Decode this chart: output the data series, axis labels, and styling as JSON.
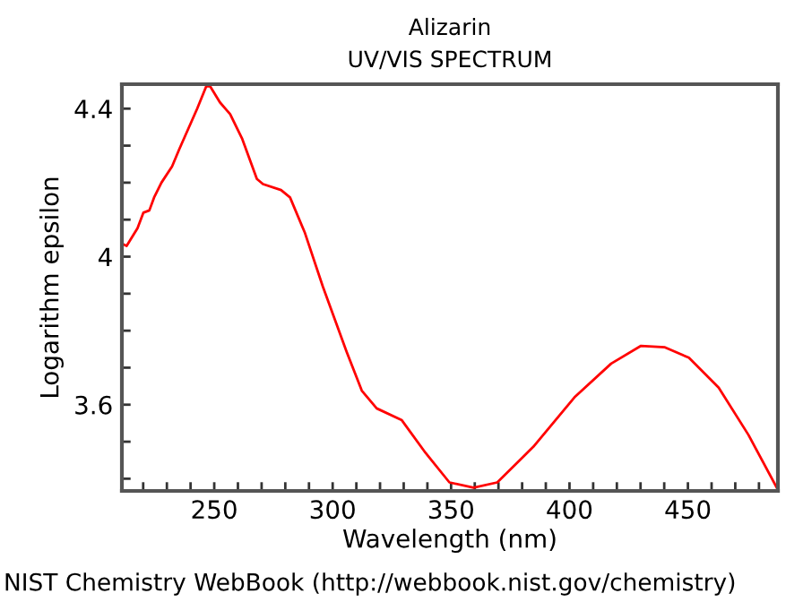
{
  "chart_data": {
    "type": "line",
    "title": "Alizarin",
    "subtitle": "UV/VIS SPECTRUM",
    "xlabel": "Wavelength (nm)",
    "ylabel": "Logarithm epsilon",
    "annotations": [
      "NIST Chemistry WebBook (http://webbook.nist.gov/chemistry)"
    ],
    "series": [
      {
        "color": "#ff0000",
        "x": [
          211,
          213,
          217.6,
          220.1,
          222.6,
          224.6,
          227.7,
          232.2,
          235.2,
          242.8,
          246.6,
          248.3,
          252.4,
          256.7,
          261.7,
          268,
          270.6,
          278.2,
          282,
          288.3,
          295.8,
          305.9,
          312.3,
          318.6,
          329.2,
          339.2,
          349.3,
          359.5,
          369.5,
          384.7,
          402.4,
          417.6,
          430.2,
          440.3,
          450.4,
          463,
          475.6,
          488
        ],
        "values": [
          4.035,
          4.029,
          4.077,
          4.119,
          4.125,
          4.16,
          4.2,
          4.244,
          4.29,
          4.4,
          4.46,
          4.46,
          4.417,
          4.385,
          4.32,
          4.21,
          4.196,
          4.18,
          4.16,
          4.064,
          3.92,
          3.743,
          3.638,
          3.59,
          3.558,
          3.47,
          3.39,
          3.376,
          3.39,
          3.486,
          3.622,
          3.711,
          3.759,
          3.755,
          3.727,
          3.646,
          3.518,
          3.37
        ]
      }
    ],
    "xlim": [
      211,
      488
    ],
    "ylim": [
      3.367,
      4.466
    ],
    "xticks": [
      {
        "value": 220,
        "label": null
      },
      {
        "value": 230,
        "label": null
      },
      {
        "value": 240,
        "label": null
      },
      250,
      {
        "value": 260,
        "label": null
      },
      {
        "value": 270,
        "label": null
      },
      {
        "value": 280,
        "label": null
      },
      {
        "value": 290,
        "label": null
      },
      300,
      {
        "value": 310,
        "label": null
      },
      {
        "value": 320,
        "label": null
      },
      {
        "value": 330,
        "label": null
      },
      {
        "value": 340,
        "label": null
      },
      350,
      {
        "value": 360,
        "label": null
      },
      {
        "value": 370,
        "label": null
      },
      {
        "value": 380,
        "label": null
      },
      {
        "value": 390,
        "label": null
      },
      400,
      {
        "value": 410,
        "label": null
      },
      {
        "value": 420,
        "label": null
      },
      {
        "value": 430,
        "label": null
      },
      {
        "value": 440,
        "label": null
      },
      450,
      {
        "value": 460,
        "label": null
      },
      {
        "value": 470,
        "label": null
      },
      {
        "value": 480,
        "label": null
      }
    ],
    "yticks": [
      {
        "value": 3.4,
        "label": null
      },
      {
        "value": 3.5,
        "label": null
      },
      3.6,
      {
        "value": 3.7,
        "label": null
      },
      {
        "value": 3.8,
        "label": null
      },
      {
        "value": 3.9,
        "label": null
      },
      4,
      {
        "value": 4.1,
        "label": null
      },
      {
        "value": 4.2,
        "label": null
      },
      {
        "value": 4.3,
        "label": null
      },
      4.4
    ],
    "grid": false,
    "legend": false,
    "marker": "none",
    "line_style": "solid"
  }
}
